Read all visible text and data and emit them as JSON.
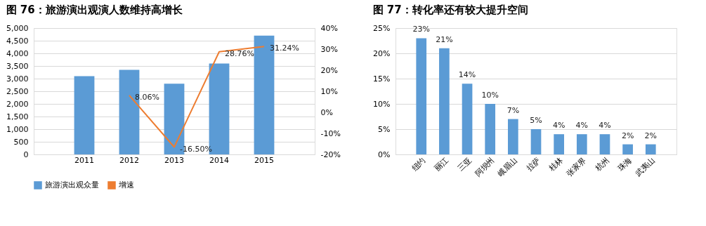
{
  "chart_data": [
    {
      "type": "bar",
      "title": "图 76：旅游演出观演人数维持高增长",
      "categories": [
        "2011",
        "2012",
        "2013",
        "2014",
        "2015"
      ],
      "series": [
        {
          "name": "旅游演出观众量",
          "type": "bar",
          "color": "#5b9bd5",
          "values": [
            3100,
            3350,
            2800,
            3600,
            4700
          ]
        },
        {
          "name": "增速",
          "type": "line",
          "axis": "y2",
          "color": "#ed7d31",
          "values": [
            null,
            8.06,
            -16.5,
            28.76,
            31.24
          ],
          "value_labels": [
            null,
            "8.06%",
            "-16.50%",
            "28.76%",
            "31.24%"
          ]
        }
      ],
      "ylim": [
        0,
        5000
      ],
      "yticks": [
        0,
        500,
        {
          "value": 1000,
          "label": "1,000"
        },
        {
          "value": 1500,
          "label": "1,500"
        },
        {
          "value": 2000,
          "label": "2,000"
        },
        {
          "value": 2500,
          "label": "2,500"
        },
        {
          "value": 3000,
          "label": "3,000"
        },
        {
          "value": 3500,
          "label": "3,500"
        },
        {
          "value": 4000,
          "label": "4,000"
        },
        {
          "value": 4500,
          "label": "4,500"
        },
        {
          "value": 5000,
          "label": "5,000"
        }
      ],
      "y2lim": [
        -20,
        40
      ],
      "y2ticks": [
        {
          "value": -20,
          "label": "-20%"
        },
        {
          "value": -10,
          "label": "-10%"
        },
        {
          "value": 0,
          "label": "0%"
        },
        {
          "value": 10,
          "label": "10%"
        },
        {
          "value": 20,
          "label": "20%"
        },
        {
          "value": 30,
          "label": "30%"
        },
        {
          "value": 40,
          "label": "40%"
        }
      ],
      "grid": "y",
      "legend": "bottom"
    },
    {
      "type": "bar",
      "title": "图 77：转化率还有较大提升空间",
      "categories": [
        "纽约",
        "丽江",
        "三亚",
        "阿坝州",
        "峨眉山",
        "拉萨",
        "桂林",
        "张家界",
        "杭州",
        "珠海",
        "武夷山"
      ],
      "color": "#5b9bd5",
      "values": [
        23,
        21,
        14,
        10,
        7,
        5,
        4,
        4,
        4,
        2,
        2
      ],
      "value_labels": [
        "23%",
        "21%",
        "14%",
        "10%",
        "7%",
        "5%",
        "4%",
        "4%",
        "4%",
        "2%",
        "2%"
      ],
      "ylim": [
        0,
        25
      ],
      "yticks": [
        {
          "value": 0,
          "label": "0%"
        },
        {
          "value": 5,
          "label": "5%"
        },
        {
          "value": 10,
          "label": "10%"
        },
        {
          "value": 15,
          "label": "15%"
        },
        {
          "value": 20,
          "label": "20%"
        },
        {
          "value": 25,
          "label": "25%"
        }
      ],
      "grid": "y"
    }
  ]
}
